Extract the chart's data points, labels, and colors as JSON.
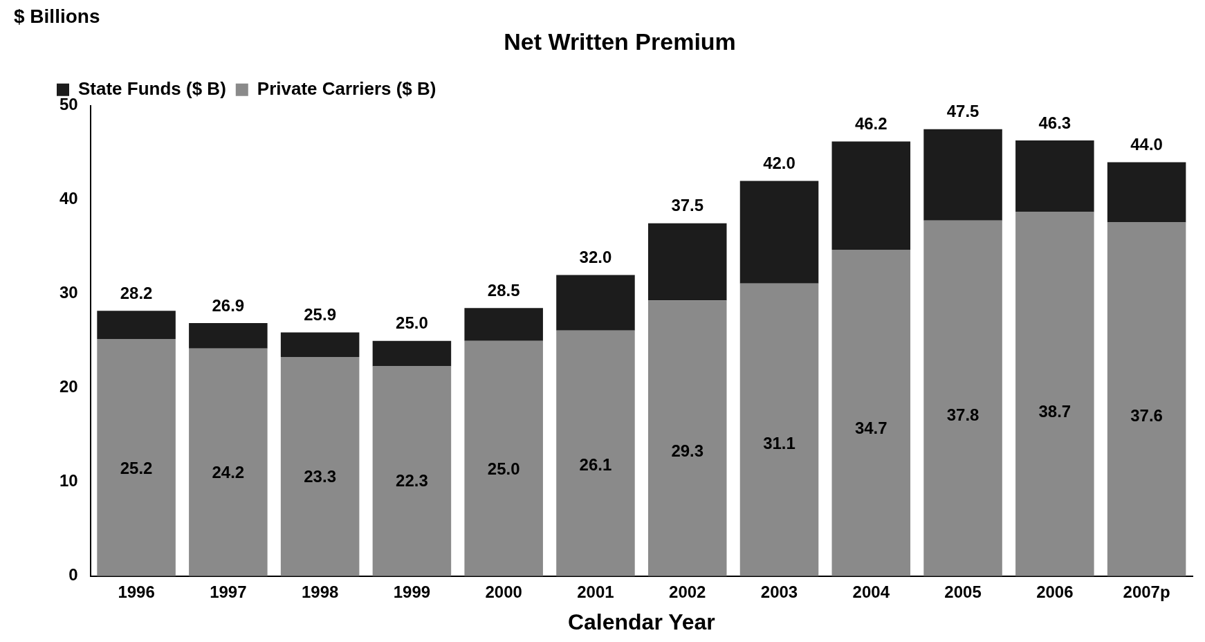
{
  "chart_data": {
    "type": "bar",
    "title": "Net Written Premium",
    "xlabel": "Calendar Year",
    "ylabel": "$ Billions",
    "categories": [
      "1996",
      "1997",
      "1998",
      "1999",
      "2000",
      "2001",
      "2002",
      "2003",
      "2004",
      "2005",
      "2006",
      "2007p"
    ],
    "stacked": true,
    "series": [
      {
        "name": "Private Carriers ($ B)",
        "color": "#8a8a8a",
        "values": [
          25.2,
          24.2,
          23.3,
          22.3,
          25.0,
          26.1,
          29.3,
          31.1,
          34.7,
          37.8,
          38.7,
          37.6
        ],
        "value_labels": [
          "25.2",
          "24.2",
          "23.3",
          "22.3",
          "25.0",
          "26.1",
          "29.3",
          "31.1",
          "34.7",
          "37.8",
          "38.7",
          "37.6"
        ]
      },
      {
        "name": "State Funds ($ B)",
        "color": "#1c1c1c",
        "values": [
          3.0,
          2.7,
          2.6,
          2.7,
          3.5,
          5.9,
          8.2,
          10.9,
          11.5,
          9.7,
          7.6,
          6.4
        ]
      }
    ],
    "totals": [
      "28.2",
      "26.9",
      "25.9",
      "25.0",
      "28.5",
      "32.0",
      "37.5",
      "42.0",
      "46.2",
      "47.5",
      "46.3",
      "44.0"
    ],
    "ylim": [
      0,
      50
    ],
    "yticks": [
      0,
      10,
      20,
      30,
      40,
      50
    ],
    "grid": false,
    "legend": "top left"
  }
}
